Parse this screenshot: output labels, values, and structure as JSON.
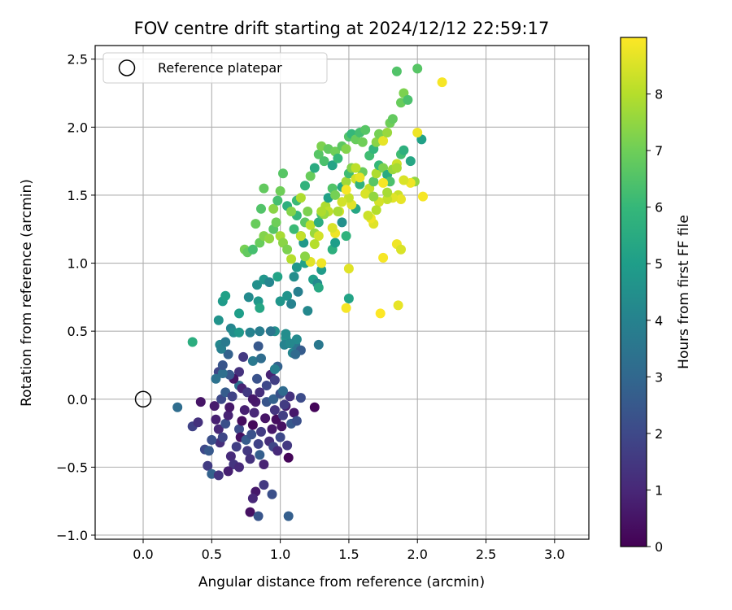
{
  "chart_data": {
    "type": "scatter",
    "title": "FOV centre drift starting at 2024/12/12 22:59:17",
    "xlabel": "Angular distance from reference (arcmin)",
    "ylabel": "Rotation from reference (arcmin)",
    "xlim": [
      -0.35,
      3.25
    ],
    "ylim": [
      -1.03,
      2.6
    ],
    "xticks": [
      "0.0",
      "0.5",
      "1.0",
      "1.5",
      "2.0",
      "2.5",
      "3.0"
    ],
    "xtick_values": [
      0,
      0.5,
      1.0,
      1.5,
      2.0,
      2.5,
      3.0
    ],
    "yticks": [
      "−1.0",
      "−0.5",
      "0.0",
      "0.5",
      "1.0",
      "1.5",
      "2.0",
      "2.5"
    ],
    "ytick_values": [
      -1.0,
      -0.5,
      0,
      0.5,
      1.0,
      1.5,
      2.0,
      2.5
    ],
    "grid": true,
    "legend": {
      "placement": "top-left",
      "entries": [
        "Reference platepar"
      ]
    },
    "reference_point": {
      "x": 0.0,
      "y": 0.0,
      "label": "Reference platepar"
    },
    "colorbar": {
      "label": "Hours from first FF file",
      "range": [
        0,
        9
      ],
      "ticks": [
        "0",
        "1",
        "2",
        "3",
        "4",
        "5",
        "6",
        "7",
        "8"
      ],
      "tick_values": [
        0,
        1,
        2,
        3,
        4,
        5,
        6,
        7,
        8
      ],
      "colormap": [
        "#440154",
        "#482878",
        "#3e4989",
        "#31688e",
        "#26828e",
        "#1f9e89",
        "#35b779",
        "#6ece58",
        "#b5de2b",
        "#fde725"
      ]
    },
    "points": [
      [
        0.25,
        -0.06,
        3.2
      ],
      [
        0.36,
        -0.2,
        1.8
      ],
      [
        0.4,
        -0.17,
        1.3
      ],
      [
        0.42,
        -0.02,
        0.5
      ],
      [
        0.45,
        -0.37,
        2.0
      ],
      [
        0.47,
        -0.49,
        1.6
      ],
      [
        0.5,
        -0.55,
        2.8
      ],
      [
        0.48,
        -0.38,
        2.5
      ],
      [
        0.52,
        -0.05,
        0.7
      ],
      [
        0.53,
        -0.15,
        0.8
      ],
      [
        0.55,
        -0.22,
        1.0
      ],
      [
        0.56,
        -0.32,
        1.2
      ],
      [
        0.58,
        -0.28,
        1.9
      ],
      [
        0.6,
        -0.18,
        2.2
      ],
      [
        0.62,
        -0.12,
        0.9
      ],
      [
        0.63,
        -0.06,
        0.6
      ],
      [
        0.64,
        -0.42,
        1.1
      ],
      [
        0.66,
        -0.48,
        1.4
      ],
      [
        0.68,
        -0.35,
        1.7
      ],
      [
        0.7,
        -0.22,
        2.1
      ],
      [
        0.71,
        -0.28,
        0.4
      ],
      [
        0.72,
        -0.16,
        0.3
      ],
      [
        0.74,
        -0.08,
        0.8
      ],
      [
        0.75,
        -0.3,
        2.6
      ],
      [
        0.76,
        -0.38,
        1.5
      ],
      [
        0.78,
        -0.44,
        1.3
      ],
      [
        0.79,
        -0.26,
        2.3
      ],
      [
        0.8,
        -0.19,
        0.2
      ],
      [
        0.81,
        -0.1,
        1.0
      ],
      [
        0.82,
        -0.02,
        0.7
      ],
      [
        0.84,
        -0.33,
        1.8
      ],
      [
        0.85,
        -0.41,
        2.7
      ],
      [
        0.86,
        -0.24,
        1.6
      ],
      [
        0.88,
        -0.48,
        0.9
      ],
      [
        0.89,
        -0.14,
        0.5
      ],
      [
        0.9,
        -0.02,
        2.4
      ],
      [
        0.92,
        -0.31,
        1.2
      ],
      [
        0.94,
        -0.22,
        0.6
      ],
      [
        0.95,
        -0.35,
        1.9
      ],
      [
        0.96,
        -0.08,
        1.4
      ],
      [
        0.97,
        -0.15,
        0.3
      ],
      [
        0.98,
        -0.38,
        1.1
      ],
      [
        1.0,
        -0.28,
        2.0
      ],
      [
        1.01,
        -0.2,
        0.4
      ],
      [
        1.02,
        -0.12,
        1.7
      ],
      [
        1.04,
        -0.05,
        0.8
      ],
      [
        1.05,
        -0.34,
        1.5
      ],
      [
        1.06,
        -0.43,
        0.1
      ],
      [
        1.08,
        -0.18,
        2.5
      ],
      [
        1.1,
        -0.1,
        0.6
      ],
      [
        1.12,
        -0.16,
        2.2
      ],
      [
        1.15,
        0.01,
        2.1
      ],
      [
        1.25,
        -0.06,
        0.1
      ],
      [
        0.88,
        -0.63,
        1.5
      ],
      [
        0.82,
        -0.68,
        0.6
      ],
      [
        0.8,
        -0.73,
        1.0
      ],
      [
        0.78,
        -0.83,
        0.4
      ],
      [
        0.84,
        -0.86,
        2.4
      ],
      [
        0.94,
        -0.7,
        2.2
      ],
      [
        1.06,
        -0.86,
        2.7
      ],
      [
        0.55,
        -0.56,
        1.4
      ],
      [
        0.62,
        -0.53,
        0.8
      ],
      [
        0.7,
        -0.5,
        1.1
      ],
      [
        0.5,
        -0.3,
        2.2
      ],
      [
        0.57,
        0.0,
        2.0
      ],
      [
        0.6,
        0.05,
        2.6
      ],
      [
        0.65,
        0.02,
        1.8
      ],
      [
        0.7,
        0.1,
        3.3
      ],
      [
        0.72,
        0.08,
        0.9
      ],
      [
        0.76,
        0.05,
        1.5
      ],
      [
        0.8,
        0.0,
        0.6
      ],
      [
        0.85,
        0.05,
        1.2
      ],
      [
        0.9,
        0.1,
        2.0
      ],
      [
        0.95,
        0.0,
        2.8
      ],
      [
        1.0,
        0.04,
        2.3
      ],
      [
        1.03,
        -0.04,
        1.6
      ],
      [
        1.07,
        0.02,
        1.3
      ],
      [
        0.93,
        0.18,
        0.9
      ],
      [
        0.96,
        0.14,
        1.7
      ],
      [
        0.83,
        0.15,
        2.3
      ],
      [
        0.7,
        0.2,
        1.3
      ],
      [
        0.66,
        0.15,
        0.5
      ],
      [
        0.63,
        0.18,
        2.5
      ],
      [
        0.55,
        0.2,
        1.9
      ],
      [
        0.53,
        0.15,
        3.4
      ],
      [
        0.58,
        0.19,
        3.3
      ],
      [
        0.73,
        0.31,
        1.5
      ],
      [
        0.84,
        0.39,
        2.5
      ],
      [
        0.8,
        0.28,
        3.6
      ],
      [
        0.86,
        0.3,
        3.2
      ],
      [
        0.98,
        0.24,
        2.8
      ],
      [
        0.96,
        0.22,
        3.9
      ],
      [
        1.02,
        0.06,
        3.1
      ],
      [
        1.09,
        0.34,
        4.1
      ],
      [
        1.11,
        0.4,
        3.5
      ],
      [
        1.12,
        0.44,
        4.3
      ],
      [
        1.15,
        0.36,
        2.6
      ],
      [
        0.58,
        0.25,
        2.4
      ],
      [
        0.62,
        0.33,
        2.8
      ],
      [
        0.56,
        0.4,
        4.2
      ],
      [
        0.57,
        0.37,
        3.9
      ],
      [
        0.6,
        0.42,
        3.7
      ],
      [
        0.64,
        0.52,
        4.1
      ],
      [
        0.66,
        0.49,
        4.4
      ],
      [
        0.7,
        0.49,
        4.8
      ],
      [
        0.78,
        0.49,
        4.0
      ],
      [
        0.85,
        0.5,
        3.8
      ],
      [
        0.96,
        0.5,
        4.5
      ],
      [
        1.04,
        0.45,
        4.6
      ],
      [
        1.04,
        0.48,
        4.4
      ],
      [
        0.93,
        0.5,
        3.5
      ],
      [
        1.03,
        0.4,
        4.0
      ],
      [
        1.07,
        0.41,
        4.2
      ],
      [
        1.11,
        0.33,
        3.1
      ],
      [
        1.28,
        0.4,
        3.6
      ],
      [
        0.36,
        0.42,
        5.6
      ],
      [
        0.55,
        0.58,
        4.6
      ],
      [
        0.58,
        0.72,
        4.9
      ],
      [
        0.6,
        0.76,
        5.1
      ],
      [
        0.7,
        0.63,
        5.0
      ],
      [
        0.77,
        0.75,
        4.3
      ],
      [
        0.83,
        0.84,
        4.5
      ],
      [
        0.84,
        0.72,
        4.8
      ],
      [
        0.85,
        0.67,
        5.3
      ],
      [
        0.88,
        0.88,
        4.7
      ],
      [
        0.92,
        0.86,
        4.1
      ],
      [
        0.98,
        0.9,
        5.2
      ],
      [
        1.1,
        0.9,
        4.4
      ],
      [
        1.05,
        0.76,
        4.6
      ],
      [
        1.08,
        0.7,
        4.0
      ],
      [
        1.13,
        0.79,
        3.9
      ],
      [
        1.2,
        0.65,
        4.2
      ],
      [
        1.24,
        0.88,
        5.0
      ],
      [
        1.27,
        0.85,
        4.3
      ],
      [
        1.28,
        0.82,
        5.4
      ],
      [
        1.0,
        0.72,
        4.7
      ],
      [
        1.12,
        0.97,
        4.8
      ],
      [
        1.18,
        1.0,
        5.1
      ],
      [
        1.3,
        0.95,
        4.9
      ],
      [
        1.38,
        1.1,
        5.7
      ],
      [
        1.4,
        1.15,
        5.0
      ],
      [
        1.45,
        1.3,
        4.5
      ],
      [
        1.48,
        1.2,
        5.8
      ],
      [
        1.5,
        0.74,
        5.2
      ],
      [
        1.55,
        1.4,
        5.3
      ],
      [
        0.74,
        1.1,
        7.1
      ],
      [
        0.76,
        1.08,
        6.8
      ],
      [
        0.8,
        1.1,
        6.3
      ],
      [
        0.85,
        1.15,
        6.9
      ],
      [
        0.88,
        1.2,
        7.3
      ],
      [
        0.92,
        1.18,
        7.5
      ],
      [
        0.95,
        1.25,
        6.6
      ],
      [
        0.97,
        1.3,
        7.0
      ],
      [
        1.0,
        1.2,
        7.8
      ],
      [
        1.02,
        1.15,
        7.4
      ],
      [
        1.05,
        1.1,
        7.2
      ],
      [
        1.08,
        1.03,
        8.0
      ],
      [
        1.1,
        1.25,
        6.1
      ],
      [
        1.12,
        1.35,
        5.9
      ],
      [
        1.15,
        1.2,
        5.4
      ],
      [
        1.17,
        1.15,
        4.8
      ],
      [
        1.18,
        1.3,
        6.7
      ],
      [
        1.2,
        1.38,
        7.2
      ],
      [
        1.22,
        1.28,
        8.1
      ],
      [
        1.25,
        1.22,
        7.6
      ],
      [
        1.28,
        1.3,
        5.6
      ],
      [
        1.3,
        1.36,
        6.3
      ],
      [
        1.33,
        1.42,
        7.9
      ],
      [
        1.35,
        1.48,
        5.1
      ],
      [
        1.38,
        1.55,
        6.5
      ],
      [
        1.4,
        1.5,
        7.1
      ],
      [
        1.43,
        1.38,
        8.5
      ],
      [
        1.45,
        1.56,
        5.4
      ],
      [
        1.48,
        1.6,
        7.7
      ],
      [
        1.5,
        1.66,
        6.2
      ],
      [
        1.52,
        1.7,
        7.3
      ],
      [
        1.55,
        1.62,
        8.4
      ],
      [
        1.58,
        1.58,
        5.8
      ],
      [
        1.6,
        1.67,
        6.9
      ],
      [
        1.63,
        1.52,
        7.4
      ],
      [
        1.65,
        1.55,
        8.2
      ],
      [
        1.68,
        1.6,
        6.6
      ],
      [
        1.7,
        1.66,
        7.9
      ],
      [
        1.72,
        1.72,
        6.0
      ],
      [
        1.75,
        1.7,
        7.2
      ],
      [
        1.78,
        1.65,
        5.5
      ],
      [
        1.8,
        1.6,
        6.4
      ],
      [
        1.82,
        1.69,
        7.6
      ],
      [
        1.85,
        1.73,
        8.3
      ],
      [
        1.88,
        1.8,
        6.2
      ],
      [
        0.82,
        1.29,
        6.9
      ],
      [
        0.86,
        1.4,
        6.5
      ],
      [
        0.88,
        1.55,
        6.8
      ],
      [
        0.95,
        1.4,
        7.4
      ],
      [
        0.98,
        1.46,
        6.3
      ],
      [
        1.0,
        1.53,
        7.0
      ],
      [
        1.02,
        1.66,
        6.6
      ],
      [
        1.05,
        1.42,
        5.7
      ],
      [
        1.08,
        1.38,
        7.3
      ],
      [
        1.12,
        1.46,
        6.1
      ],
      [
        1.15,
        1.48,
        7.9
      ],
      [
        1.18,
        1.57,
        5.8
      ],
      [
        1.22,
        1.64,
        6.9
      ],
      [
        1.25,
        1.7,
        5.5
      ],
      [
        1.28,
        1.8,
        6.6
      ],
      [
        1.3,
        1.86,
        7.2
      ],
      [
        1.32,
        1.75,
        6.4
      ],
      [
        1.35,
        1.84,
        6.8
      ],
      [
        1.38,
        1.72,
        5.2
      ],
      [
        1.4,
        1.82,
        7.0
      ],
      [
        1.42,
        1.77,
        6.0
      ],
      [
        1.45,
        1.86,
        6.7
      ],
      [
        1.48,
        1.84,
        7.3
      ],
      [
        1.5,
        1.93,
        6.5
      ],
      [
        1.52,
        1.95,
        6.0
      ],
      [
        1.55,
        1.91,
        6.9
      ],
      [
        1.58,
        1.96,
        6.3
      ],
      [
        1.6,
        1.89,
        7.0
      ],
      [
        1.62,
        1.98,
        6.6
      ],
      [
        1.65,
        1.79,
        6.2
      ],
      [
        1.68,
        1.84,
        5.9
      ],
      [
        1.7,
        1.89,
        7.4
      ],
      [
        1.72,
        1.95,
        7.1
      ],
      [
        1.75,
        1.9,
        8.7
      ],
      [
        1.78,
        1.96,
        7.6
      ],
      [
        1.8,
        2.03,
        7.0
      ],
      [
        1.82,
        2.06,
        6.8
      ],
      [
        1.85,
        2.41,
        6.5
      ],
      [
        1.88,
        2.18,
        6.9
      ],
      [
        1.9,
        2.25,
        7.2
      ],
      [
        1.93,
        2.2,
        6.4
      ],
      [
        2.0,
        2.43,
        6.6
      ],
      [
        1.9,
        1.83,
        5.7
      ],
      [
        1.95,
        1.75,
        5.3
      ],
      [
        2.03,
        1.91,
        5.1
      ],
      [
        2.18,
        2.33,
        8.9
      ],
      [
        2.0,
        1.96,
        8.8
      ],
      [
        1.98,
        1.6,
        7.5
      ],
      [
        2.04,
        1.49,
        8.9
      ],
      [
        1.95,
        1.59,
        8.8
      ],
      [
        1.9,
        1.61,
        8.5
      ],
      [
        1.86,
        1.5,
        8.3
      ],
      [
        1.88,
        1.47,
        8.7
      ],
      [
        1.85,
        1.7,
        7.8
      ],
      [
        1.82,
        1.48,
        8.6
      ],
      [
        1.78,
        1.47,
        8.2
      ],
      [
        1.75,
        1.59,
        8.9
      ],
      [
        1.72,
        1.45,
        8.4
      ],
      [
        1.7,
        1.39,
        8.0
      ],
      [
        1.68,
        1.29,
        8.6
      ],
      [
        1.66,
        1.33,
        8.8
      ],
      [
        1.64,
        1.35,
        8.3
      ],
      [
        1.62,
        1.51,
        8.5
      ],
      [
        1.58,
        1.63,
        8.7
      ],
      [
        1.55,
        1.7,
        8.1
      ],
      [
        1.52,
        1.43,
        8.6
      ],
      [
        1.5,
        1.48,
        8.2
      ],
      [
        1.48,
        1.54,
        8.9
      ],
      [
        1.45,
        1.45,
        8.4
      ],
      [
        1.42,
        1.38,
        7.8
      ],
      [
        1.4,
        1.22,
        8.8
      ],
      [
        1.38,
        1.26,
        8.5
      ],
      [
        1.35,
        1.38,
        8.1
      ],
      [
        1.32,
        1.36,
        7.6
      ],
      [
        1.3,
        1.38,
        7.9
      ],
      [
        1.28,
        1.2,
        8.4
      ],
      [
        1.25,
        1.14,
        8.0
      ],
      [
        1.22,
        1.01,
        8.6
      ],
      [
        1.18,
        1.05,
        7.4
      ],
      [
        1.15,
        1.2,
        8.2
      ],
      [
        1.75,
        1.04,
        8.9
      ],
      [
        1.5,
        0.96,
        8.6
      ],
      [
        1.48,
        0.67,
        8.9
      ],
      [
        1.73,
        0.63,
        9.0
      ],
      [
        1.86,
        0.69,
        8.7
      ],
      [
        1.85,
        1.14,
        8.8
      ],
      [
        1.88,
        1.1,
        8.5
      ],
      [
        1.3,
        1.0,
        8.8
      ],
      [
        1.78,
        1.52,
        7.8
      ],
      [
        1.68,
        1.49,
        7.5
      ]
    ]
  }
}
